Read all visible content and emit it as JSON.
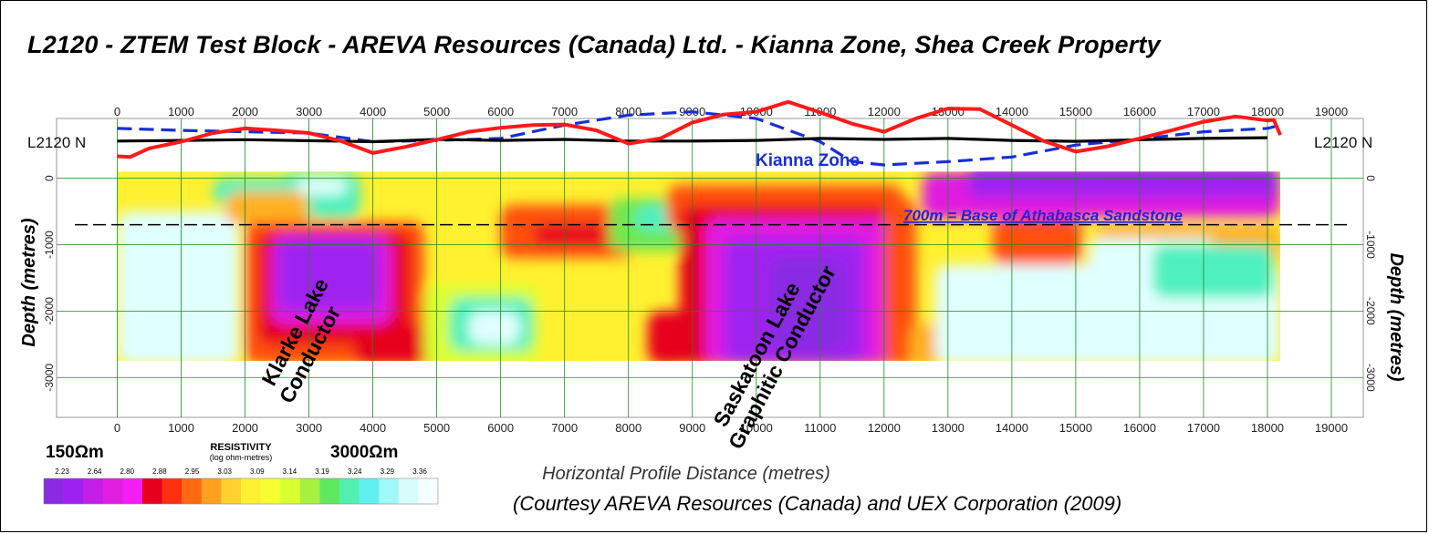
{
  "title": "L2120 - ZTEM Test Block - AREVA Resources  (Canada) Ltd. - Kianna Zone, Shea Creek Property",
  "chart_data": {
    "type": "heatmap",
    "xlabel": "Horizontal Profile Distance (metres)",
    "ylabel_left": "Depth (metres)",
    "ylabel_right": "Depth (metres)",
    "x_ticks": [
      "0",
      "1000",
      "2000",
      "3000",
      "4000",
      "5000",
      "6000",
      "7000",
      "8000",
      "9000",
      "10000",
      "11000",
      "12000",
      "13000",
      "14000",
      "15000",
      "16000",
      "17000",
      "18000",
      "19000"
    ],
    "xlim": [
      -950,
      19500
    ],
    "y_ticks": [
      0,
      -1000,
      -2000,
      -3000
    ],
    "y_tick_labels": [
      "0",
      "-1000",
      "-2000",
      "-3000"
    ],
    "ylim": [
      -3600,
      900
    ],
    "grid": true,
    "line_label_left": "L2120 N",
    "line_label_right": "L2120 N",
    "resistivity_scale": {
      "title": "RESISTIVITY",
      "subtitle": "(log ohm-metres)",
      "low_label": "150Ωm",
      "high_label": "3000Ωm",
      "tick_labels": [
        "2.23",
        "2.64",
        "2.80",
        "2.88",
        "2.95",
        "3.03",
        "3.09",
        "3.14",
        "3.19",
        "3.24",
        "3.29",
        "3.36"
      ],
      "colors": [
        "#8a2be2",
        "#a020f0",
        "#c41ee8",
        "#e01ee0",
        "#f21ef2",
        "#e6001e",
        "#ff3010",
        "#ff6a10",
        "#ffa020",
        "#ffd030",
        "#fff030",
        "#f6ff30",
        "#d8ff30",
        "#a8f040",
        "#60e860",
        "#50f0b0",
        "#60f0f0",
        "#a0f8f8",
        "#d8fcfc",
        "#f4ffff"
      ]
    },
    "resistivity_section": {
      "x_range": [
        0,
        18200
      ],
      "depth_range": [
        100,
        -2750
      ],
      "base_value": 3.08
    },
    "annotations": {
      "kianna_zone": "Kianna Zone",
      "base_athabasca": "700m = Base of Athabasca Sandstone",
      "klarke_line1": "Klarke Lake",
      "klarke_line2": "Conductor",
      "saskatoon_line1": "Saskatoon Lake",
      "saskatoon_line2": "Graphitic Conductor"
    },
    "base_athabasca_depth": -700,
    "profiles": {
      "topography_black": {
        "color": "#000000",
        "x": [
          0,
          1000,
          2000,
          3000,
          4000,
          5000,
          6000,
          7000,
          8000,
          9000,
          10000,
          11000,
          12000,
          13000,
          14000,
          15000,
          16000,
          17000,
          18000
        ],
        "y": [
          560,
          570,
          580,
          565,
          550,
          585,
          570,
          585,
          560,
          560,
          570,
          600,
          585,
          600,
          570,
          555,
          580,
          600,
          610
        ]
      },
      "ztem_red": {
        "color": "#ff1a1a",
        "x": [
          0,
          200,
          500,
          1000,
          1500,
          2000,
          2500,
          3000,
          3500,
          4000,
          4500,
          5000,
          5500,
          6000,
          6500,
          7000,
          7500,
          8000,
          8500,
          9000,
          9500,
          10000,
          10500,
          11000,
          11500,
          12000,
          12500,
          13000,
          13500,
          14000,
          14500,
          15000,
          15500,
          16000,
          16500,
          17000,
          17500,
          18000,
          18100,
          18200
        ],
        "y": [
          330,
          320,
          450,
          550,
          680,
          750,
          720,
          680,
          560,
          380,
          470,
          580,
          700,
          760,
          800,
          810,
          720,
          520,
          600,
          840,
          960,
          1000,
          1150,
          990,
          820,
          700,
          900,
          1050,
          1040,
          800,
          560,
          400,
          480,
          600,
          720,
          850,
          930,
          870,
          880,
          650
        ]
      },
      "dashed_blue": {
        "color": "#1a2fd6",
        "x": [
          0,
          1000,
          2000,
          3000,
          4000,
          5000,
          6000,
          7000,
          8000,
          9000,
          10000,
          11000,
          11500,
          12000,
          13000,
          14000,
          15000,
          16000,
          17000,
          18000,
          18200
        ],
        "y": [
          750,
          720,
          700,
          680,
          550,
          570,
          600,
          800,
          950,
          1000,
          900,
          550,
          250,
          200,
          250,
          320,
          500,
          590,
          700,
          750,
          800
        ]
      }
    }
  },
  "credit": "(Courtesy AREVA Resources (Canada) and UEX Corporation (2009)"
}
